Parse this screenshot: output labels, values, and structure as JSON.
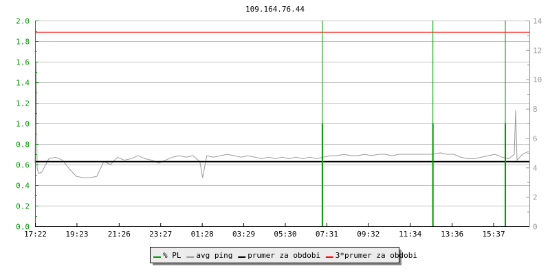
{
  "chart_data": {
    "type": "line",
    "title": "109.164.76.44",
    "x_ticks": [
      "17:22",
      "19:23",
      "21:26",
      "23:27",
      "01:28",
      "03:29",
      "05:30",
      "07:31",
      "09:32",
      "11:34",
      "13:36",
      "15:37"
    ],
    "x_range": [
      "17:22",
      "17:22"
    ],
    "y_left": {
      "range": [
        0,
        2.0
      ],
      "ticks": [
        "0.0",
        "0.2",
        "0.4",
        "0.6",
        "0.8",
        "1.0",
        "1.2",
        "1.4",
        "1.6",
        "1.8",
        "2.0"
      ],
      "color": "#009900"
    },
    "y_right": {
      "range": [
        0,
        14
      ],
      "ticks": [
        "0",
        "2",
        "4",
        "6",
        "8",
        "10",
        "12",
        "14"
      ],
      "color": "#999999"
    },
    "grid": true,
    "legend_placement": "bottom",
    "series": [
      {
        "name": "% PL",
        "color": "#009900",
        "axis": "left",
        "points": [
          [
            "07:19",
            1.0
          ],
          [
            "12:41",
            1.0
          ],
          [
            "16:12",
            1.0
          ]
        ]
      },
      {
        "name": "avg ping",
        "color": "#999999",
        "axis": "right",
        "points": [
          [
            "17:22",
            4.3
          ],
          [
            "17:25",
            11.2
          ],
          [
            "17:28",
            4.0
          ],
          [
            "17:32",
            3.6
          ],
          [
            "17:42",
            3.7
          ],
          [
            "18:02",
            4.6
          ],
          [
            "18:22",
            4.7
          ],
          [
            "18:42",
            4.5
          ],
          [
            "19:02",
            3.9
          ],
          [
            "19:22",
            3.4
          ],
          [
            "19:42",
            3.3
          ],
          [
            "20:02",
            3.3
          ],
          [
            "20:22",
            3.4
          ],
          [
            "20:42",
            4.4
          ],
          [
            "21:02",
            4.2
          ],
          [
            "21:22",
            4.7
          ],
          [
            "21:42",
            4.5
          ],
          [
            "22:02",
            4.6
          ],
          [
            "22:22",
            4.8
          ],
          [
            "22:42",
            4.6
          ],
          [
            "23:02",
            4.5
          ],
          [
            "23:22",
            4.3
          ],
          [
            "23:42",
            4.5
          ],
          [
            "00:02",
            4.7
          ],
          [
            "00:22",
            4.8
          ],
          [
            "00:42",
            4.7
          ],
          [
            "01:02",
            4.8
          ],
          [
            "01:22",
            4.4
          ],
          [
            "01:30",
            3.3
          ],
          [
            "01:42",
            4.8
          ],
          [
            "02:02",
            4.7
          ],
          [
            "02:22",
            4.8
          ],
          [
            "02:42",
            4.9
          ],
          [
            "03:02",
            4.8
          ],
          [
            "03:22",
            4.7
          ],
          [
            "03:42",
            4.8
          ],
          [
            "04:02",
            4.7
          ],
          [
            "04:22",
            4.6
          ],
          [
            "04:42",
            4.7
          ],
          [
            "05:02",
            4.6
          ],
          [
            "05:22",
            4.7
          ],
          [
            "05:42",
            4.6
          ],
          [
            "06:02",
            4.7
          ],
          [
            "06:22",
            4.6
          ],
          [
            "06:42",
            4.7
          ],
          [
            "07:02",
            4.6
          ],
          [
            "07:22",
            4.7
          ],
          [
            "07:42",
            4.8
          ],
          [
            "08:02",
            4.8
          ],
          [
            "08:22",
            4.9
          ],
          [
            "08:42",
            4.8
          ],
          [
            "09:02",
            4.8
          ],
          [
            "09:22",
            4.9
          ],
          [
            "09:42",
            4.8
          ],
          [
            "10:02",
            4.9
          ],
          [
            "10:22",
            4.9
          ],
          [
            "10:42",
            4.8
          ],
          [
            "11:02",
            4.9
          ],
          [
            "11:22",
            4.9
          ],
          [
            "11:42",
            4.9
          ],
          [
            "12:02",
            4.9
          ],
          [
            "12:22",
            4.9
          ],
          [
            "12:42",
            4.9
          ],
          [
            "13:02",
            5.0
          ],
          [
            "13:22",
            4.9
          ],
          [
            "13:42",
            4.9
          ],
          [
            "14:02",
            4.7
          ],
          [
            "14:22",
            4.6
          ],
          [
            "14:42",
            4.6
          ],
          [
            "15:02",
            4.7
          ],
          [
            "15:22",
            4.8
          ],
          [
            "15:42",
            4.9
          ],
          [
            "16:02",
            4.7
          ],
          [
            "16:22",
            4.6
          ],
          [
            "16:38",
            4.9
          ],
          [
            "16:42",
            7.9
          ],
          [
            "16:46",
            4.5
          ],
          [
            "17:02",
            4.9
          ],
          [
            "17:20",
            5.1
          ]
        ]
      },
      {
        "name": "prumer za obdobi",
        "color": "#000000",
        "axis": "right",
        "value": 4.4
      },
      {
        "name": "3*prumer za obdobi",
        "color": "#ff0000",
        "axis": "right",
        "value": 13.2
      }
    ]
  }
}
